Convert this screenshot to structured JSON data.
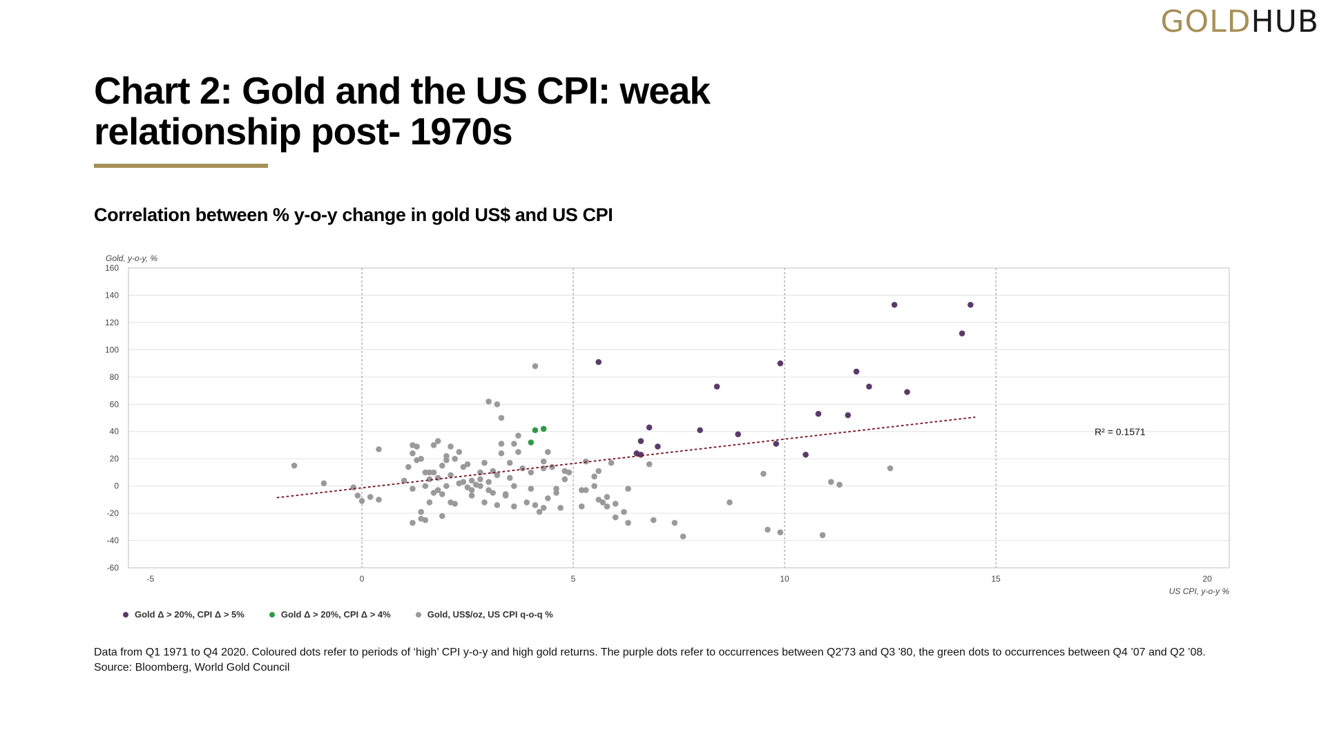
{
  "header": {
    "logo_part1": "GOLD",
    "logo_part2": "HUB",
    "title": "Chart 2: Gold and the US CPI: weak relationship post- 1970s",
    "subtitle": "Correlation between % y-o-y change in gold US$ and US CPI"
  },
  "colors": {
    "accent": "#a69058",
    "purple": "#5b3a6b",
    "green": "#2e9a48",
    "grey": "#9a9a9a",
    "trend": "#7a1a2a"
  },
  "chart_data": {
    "type": "scatter",
    "ylabel": "Gold, y-o-y, %",
    "xlabel": "US CPI, y-o-y %",
    "xlim": [
      -5,
      21
    ],
    "ylim": [
      -60,
      160
    ],
    "xticks": [
      -5,
      0,
      5,
      10,
      15,
      20
    ],
    "yticks": [
      -60,
      -40,
      -20,
      0,
      20,
      40,
      60,
      80,
      100,
      120,
      140,
      160
    ],
    "grid": {
      "horizontal": true,
      "vertical_dashed": [
        0,
        5,
        10,
        15
      ]
    },
    "legend_position": "bottom-left",
    "r_squared_label": "R² = 0.1571",
    "trendline": {
      "x": [
        -2,
        14.5
      ],
      "y": [
        -8.5,
        50.5
      ],
      "style": "dotted"
    },
    "series": [
      {
        "name": "Gold Δ > 20%, CPI Δ > 5%",
        "color": "#5b3a6b",
        "points": [
          [
            5.6,
            91
          ],
          [
            9.9,
            90
          ],
          [
            12.6,
            133
          ],
          [
            14.4,
            133
          ],
          [
            14.2,
            112
          ],
          [
            11.7,
            84
          ],
          [
            12.0,
            73
          ],
          [
            12.9,
            69
          ],
          [
            8.4,
            73
          ],
          [
            10.8,
            53
          ],
          [
            11.5,
            52
          ],
          [
            6.8,
            43
          ],
          [
            8.0,
            41
          ],
          [
            8.9,
            38
          ],
          [
            6.6,
            33
          ],
          [
            7.0,
            29
          ],
          [
            9.8,
            31
          ],
          [
            6.5,
            24
          ],
          [
            6.6,
            23
          ],
          [
            10.5,
            23
          ]
        ]
      },
      {
        "name": "Gold Δ > 20%, CPI Δ > 4%",
        "color": "#2e9a48",
        "points": [
          [
            4.3,
            42
          ],
          [
            4.1,
            41
          ],
          [
            4.0,
            32
          ]
        ]
      },
      {
        "name": "Gold, US$/oz, US CPI q-o-q %",
        "color": "#9a9a9a",
        "points": [
          [
            -1.6,
            15
          ],
          [
            -0.9,
            2
          ],
          [
            -0.2,
            -1
          ],
          [
            -0.1,
            -7
          ],
          [
            0.0,
            -11
          ],
          [
            0.2,
            -8
          ],
          [
            0.4,
            -10
          ],
          [
            0.4,
            27
          ],
          [
            1.0,
            4
          ],
          [
            1.1,
            14
          ],
          [
            1.2,
            30
          ],
          [
            1.3,
            29
          ],
          [
            1.2,
            24
          ],
          [
            1.3,
            19
          ],
          [
            1.2,
            -2
          ],
          [
            1.2,
            -27
          ],
          [
            1.4,
            -19
          ],
          [
            1.4,
            -24
          ],
          [
            1.5,
            -25
          ],
          [
            1.5,
            0
          ],
          [
            1.6,
            -12
          ],
          [
            1.6,
            5
          ],
          [
            1.6,
            10
          ],
          [
            1.7,
            30
          ],
          [
            1.8,
            33
          ],
          [
            1.7,
            10
          ],
          [
            1.8,
            6
          ],
          [
            1.8,
            -3
          ],
          [
            1.9,
            -6
          ],
          [
            1.9,
            -22
          ],
          [
            2.0,
            22
          ],
          [
            2.0,
            19
          ],
          [
            2.1,
            29
          ],
          [
            2.2,
            20
          ],
          [
            2.1,
            8
          ],
          [
            2.1,
            -12
          ],
          [
            2.2,
            -13
          ],
          [
            2.3,
            25
          ],
          [
            2.3,
            2
          ],
          [
            2.4,
            14
          ],
          [
            2.5,
            16
          ],
          [
            2.6,
            -7
          ],
          [
            2.6,
            4
          ],
          [
            2.7,
            1
          ],
          [
            2.8,
            10
          ],
          [
            2.9,
            17
          ],
          [
            2.9,
            -12
          ],
          [
            3.0,
            62
          ],
          [
            3.1,
            11
          ],
          [
            3.2,
            60
          ],
          [
            3.3,
            50
          ],
          [
            3.3,
            31
          ],
          [
            3.3,
            24
          ],
          [
            3.2,
            -14
          ],
          [
            3.4,
            -6
          ],
          [
            3.5,
            17
          ],
          [
            3.6,
            31
          ],
          [
            3.6,
            -15
          ],
          [
            3.7,
            37
          ],
          [
            3.7,
            25
          ],
          [
            3.8,
            13
          ],
          [
            3.9,
            -12
          ],
          [
            4.0,
            -2
          ],
          [
            4.0,
            10
          ],
          [
            4.1,
            88
          ],
          [
            4.1,
            -14
          ],
          [
            4.2,
            -19
          ],
          [
            4.3,
            18
          ],
          [
            4.3,
            13
          ],
          [
            4.4,
            25
          ],
          [
            4.3,
            -16
          ],
          [
            4.4,
            -9
          ],
          [
            4.5,
            14
          ],
          [
            4.6,
            -2
          ],
          [
            4.6,
            -5
          ],
          [
            4.7,
            -16
          ],
          [
            4.8,
            11
          ],
          [
            4.9,
            10
          ],
          [
            4.8,
            5
          ],
          [
            5.2,
            -3
          ],
          [
            5.2,
            -15
          ],
          [
            5.3,
            -3
          ],
          [
            5.3,
            18
          ],
          [
            5.5,
            0
          ],
          [
            5.5,
            7
          ],
          [
            5.6,
            11
          ],
          [
            5.6,
            -10
          ],
          [
            5.7,
            -12
          ],
          [
            5.8,
            -8
          ],
          [
            5.8,
            -15
          ],
          [
            5.9,
            17
          ],
          [
            6.0,
            -13
          ],
          [
            6.0,
            -23
          ],
          [
            6.2,
            -19
          ],
          [
            6.3,
            -2
          ],
          [
            6.3,
            -27
          ],
          [
            6.8,
            16
          ],
          [
            6.9,
            -25
          ],
          [
            7.4,
            -27
          ],
          [
            7.6,
            -37
          ],
          [
            8.7,
            -12
          ],
          [
            9.5,
            9
          ],
          [
            9.6,
            -32
          ],
          [
            9.9,
            -34
          ],
          [
            10.9,
            -36
          ],
          [
            11.1,
            3
          ],
          [
            11.3,
            1
          ],
          [
            12.5,
            13
          ],
          [
            1.4,
            20
          ],
          [
            1.9,
            15
          ],
          [
            2.0,
            0
          ],
          [
            2.4,
            3
          ],
          [
            2.5,
            -1
          ],
          [
            2.6,
            -3
          ],
          [
            2.8,
            5
          ],
          [
            2.8,
            0
          ],
          [
            3.0,
            -3
          ],
          [
            3.0,
            3
          ],
          [
            3.1,
            -5
          ],
          [
            3.2,
            8
          ],
          [
            3.4,
            -7
          ],
          [
            3.5,
            6
          ],
          [
            3.6,
            0
          ],
          [
            1.7,
            -5
          ],
          [
            1.5,
            10
          ]
        ]
      }
    ]
  },
  "legend": [
    {
      "label": "Gold Δ > 20%, CPI Δ > 5%",
      "color": "#5b3a6b"
    },
    {
      "label": "Gold Δ > 20%, CPI Δ > 4%",
      "color": "#2e9a48"
    },
    {
      "label": "Gold, US$/oz, US CPI q-o-q %",
      "color": "#9a9a9a"
    }
  ],
  "footnote": {
    "line1": "Data from Q1 1971 to Q4 2020. Coloured dots refer to periods of ‘high’ CPI y-o-y and high gold returns. The purple dots refer to occurrences between Q2'73 and Q3 '80, the green dots to occurrences between Q4 ’07 and Q2 ’08.",
    "line2": "Source: Bloomberg, World Gold Council"
  }
}
